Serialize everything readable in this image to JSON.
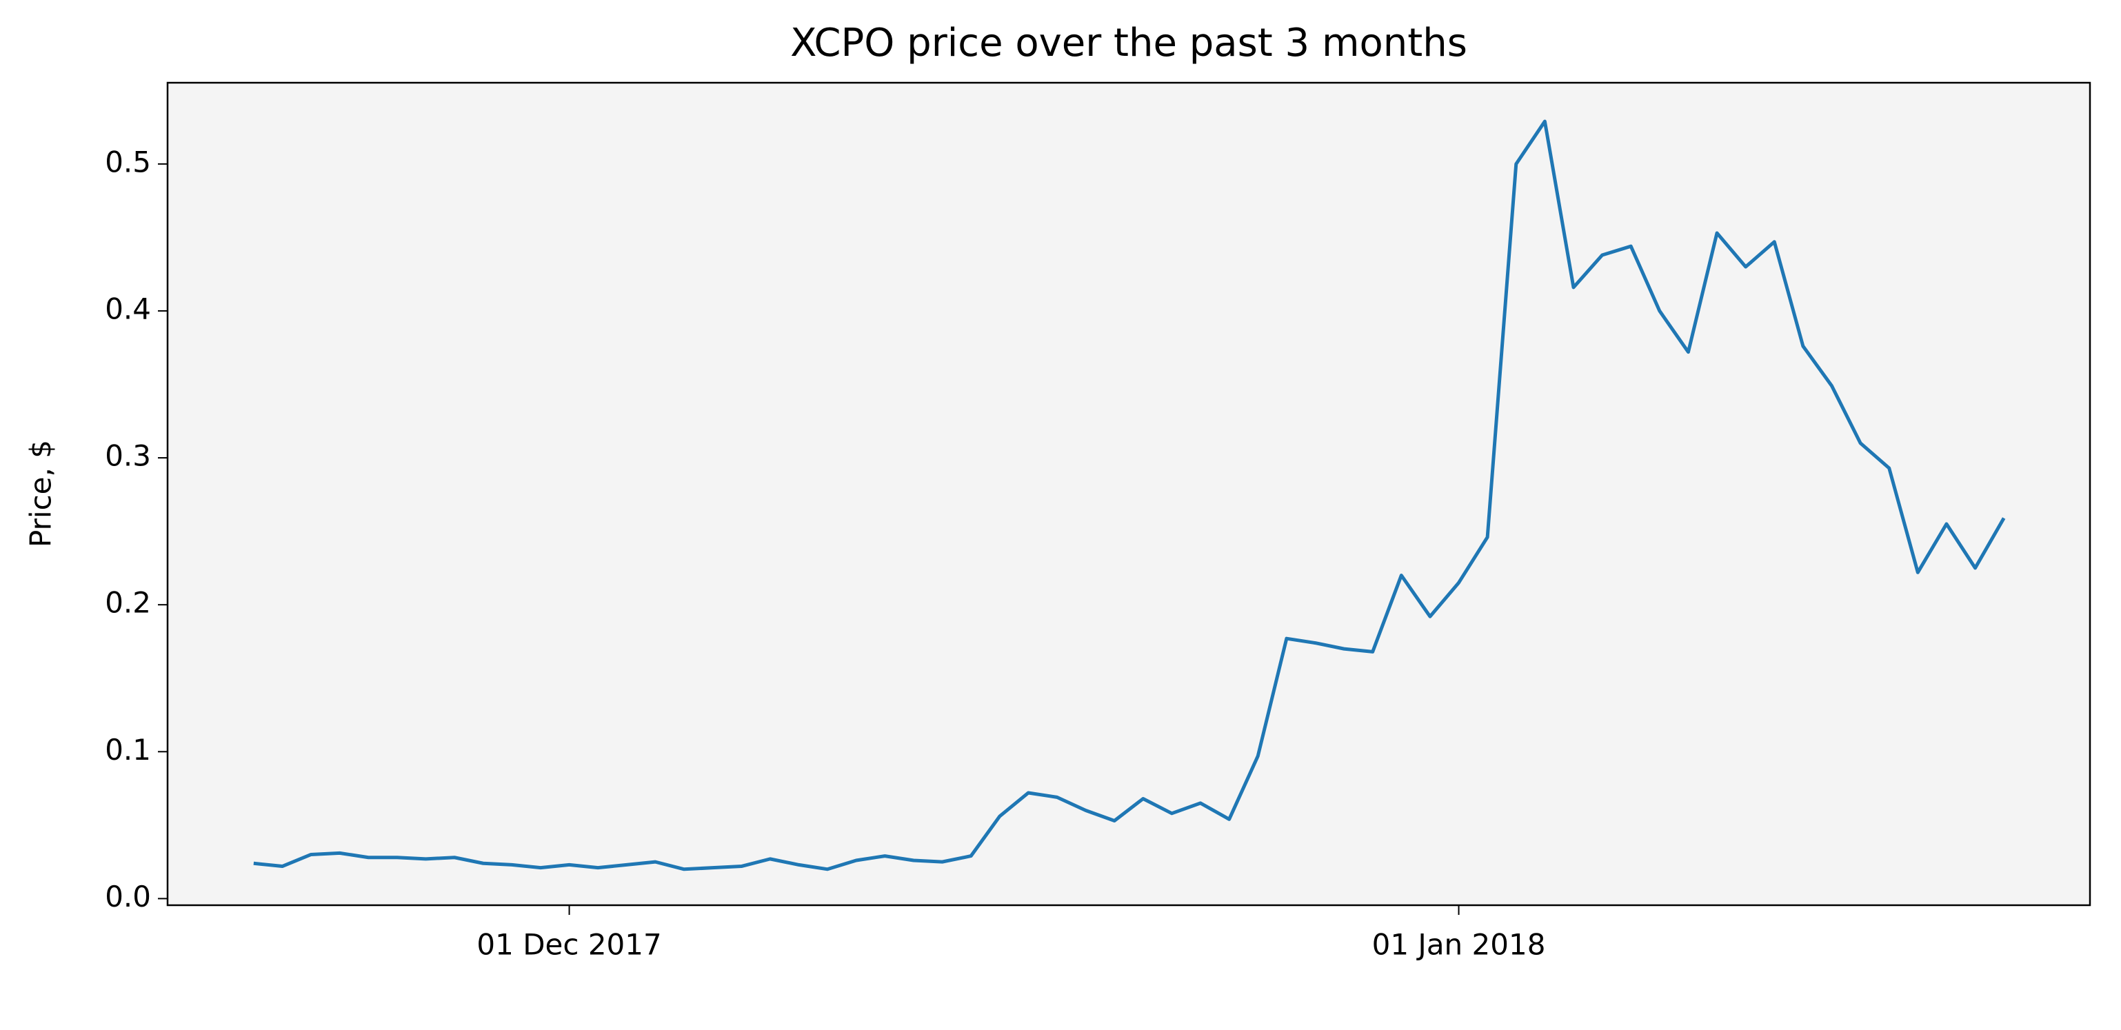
{
  "chart_data": {
    "type": "line",
    "title": "XCPO price over the past 3 months",
    "y_label": "Price, $",
    "x": [
      "2017-11-20",
      "2017-11-21",
      "2017-11-22",
      "2017-11-23",
      "2017-11-24",
      "2017-11-25",
      "2017-11-26",
      "2017-11-27",
      "2017-11-28",
      "2017-11-29",
      "2017-11-30",
      "2017-12-01",
      "2017-12-02",
      "2017-12-03",
      "2017-12-04",
      "2017-12-05",
      "2017-12-06",
      "2017-12-07",
      "2017-12-08",
      "2017-12-09",
      "2017-12-10",
      "2017-12-11",
      "2017-12-12",
      "2017-12-13",
      "2017-12-14",
      "2017-12-15",
      "2017-12-16",
      "2017-12-17",
      "2017-12-18",
      "2017-12-19",
      "2017-12-20",
      "2017-12-21",
      "2017-12-22",
      "2017-12-23",
      "2017-12-24",
      "2017-12-25",
      "2017-12-26",
      "2017-12-27",
      "2017-12-28",
      "2017-12-29",
      "2017-12-30",
      "2017-12-31",
      "2018-01-01",
      "2018-01-02",
      "2018-01-03",
      "2018-01-04",
      "2018-01-05",
      "2018-01-06",
      "2018-01-07",
      "2018-01-08",
      "2018-01-09",
      "2018-01-10",
      "2018-01-11",
      "2018-01-12",
      "2018-01-13",
      "2018-01-14",
      "2018-01-15",
      "2018-01-16",
      "2018-01-17",
      "2018-01-18",
      "2018-01-19",
      "2018-01-20"
    ],
    "series": [
      {
        "color": "#1f77b4",
        "values": [
          0.024,
          0.022,
          0.03,
          0.031,
          0.028,
          0.028,
          0.027,
          0.028,
          0.024,
          0.023,
          0.021,
          0.023,
          0.021,
          0.023,
          0.025,
          0.02,
          0.021,
          0.022,
          0.027,
          0.023,
          0.02,
          0.026,
          0.029,
          0.026,
          0.025,
          0.029,
          0.056,
          0.072,
          0.069,
          0.06,
          0.053,
          0.068,
          0.058,
          0.065,
          0.054,
          0.097,
          0.177,
          0.174,
          0.17,
          0.168,
          0.22,
          0.192,
          0.215,
          0.246,
          0.5,
          0.529,
          0.416,
          0.438,
          0.444,
          0.4,
          0.372,
          0.453,
          0.43,
          0.447,
          0.376,
          0.349,
          0.31,
          0.293,
          0.222,
          0.255,
          0.225,
          0.259
        ]
      }
    ],
    "xlim": [
      "2017-11-17",
      "2018-01-23"
    ],
    "xticks": [
      {
        "value": "2017-12-01",
        "label": "01 Dec 2017"
      },
      {
        "value": "2018-01-01",
        "label": "01 Jan 2018"
      }
    ],
    "ylim": [
      -0.0045,
      0.5553
    ],
    "yticks": [
      {
        "value": 0,
        "label": "0.0"
      },
      0.1,
      0.2,
      0.3,
      0.4,
      0.5
    ],
    "plot_background": "#f4f4f4",
    "grid": false
  }
}
